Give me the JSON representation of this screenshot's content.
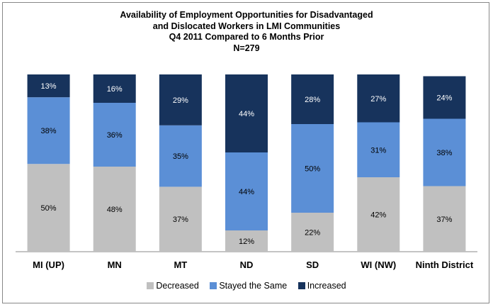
{
  "chart_data": {
    "type": "bar",
    "stacked": true,
    "title_lines": [
      "Availability of Employment Opportunities for Disadvantaged",
      "and Dislocated Workers in LMI Communities",
      "Q4 2011 Compared to 6 Months Prior",
      "N=279"
    ],
    "categories": [
      "MI (UP)",
      "MN",
      "MT",
      "ND",
      "SD",
      "WI (NW)",
      "Ninth District"
    ],
    "series": [
      {
        "name": "Decreased",
        "color": "#c0c0c0",
        "values": [
          50,
          48,
          37,
          12,
          22,
          42,
          37
        ],
        "labels": [
          "50%",
          "48%",
          "37%",
          "12%",
          "22%",
          "42%",
          "37%"
        ]
      },
      {
        "name": "Stayed the Same",
        "color": "#5b8fd6",
        "values": [
          38,
          36,
          35,
          44,
          50,
          31,
          38
        ],
        "labels": [
          "38%",
          "36%",
          "35%",
          "44%",
          "50%",
          "31%",
          "38%"
        ]
      },
      {
        "name": "Increased",
        "color": "#17335c",
        "values": [
          13,
          16,
          29,
          44,
          28,
          27,
          24
        ],
        "labels": [
          "13%",
          "16%",
          "29%",
          "44%",
          "28%",
          "27%",
          "24%"
        ]
      }
    ],
    "ylim": [
      0,
      100
    ],
    "grid": false,
    "legend_position": "bottom"
  }
}
